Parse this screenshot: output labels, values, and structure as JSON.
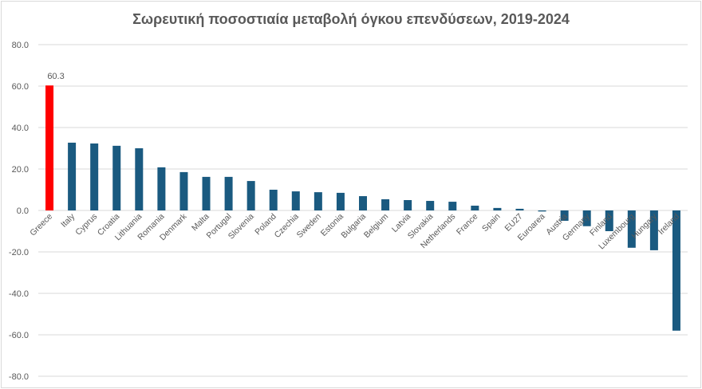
{
  "chart_data": {
    "type": "bar",
    "title": "Σωρευτική ποσοστιαία μεταβολή όγκου επενδύσεων, 2019-2024",
    "xlabel": "",
    "ylabel": "",
    "ylim": [
      -80,
      80
    ],
    "yticks": [
      "80.0",
      "60.0",
      "40.0",
      "20.0",
      "0.0",
      "-20.0",
      "-40.0",
      "-60.0",
      "-80.0"
    ],
    "grid": true,
    "categories": [
      "Greece",
      "Italy",
      "Cyprus",
      "Croatia",
      "Lithuania",
      "Romania",
      "Denmark",
      "Malta",
      "Portugal",
      "Slovenia",
      "Poland",
      "Czechia",
      "Sweden",
      "Estonia",
      "Bulgaria",
      "Belgium",
      "Latvia",
      "Slovakia",
      "Netherlands",
      "France",
      "Spain",
      "EU27",
      "Euroarea",
      "Austria",
      "Germany",
      "Finland",
      "Luxembourg",
      "Hungary",
      "Ireland"
    ],
    "values": [
      60.3,
      32.7,
      32.3,
      31.2,
      30.0,
      20.8,
      18.5,
      16.2,
      16.2,
      14.2,
      10.0,
      9.2,
      8.8,
      8.5,
      6.9,
      5.4,
      5.0,
      4.6,
      4.2,
      2.3,
      1.2,
      0.8,
      -0.5,
      -5.0,
      -7.6,
      -10.0,
      -18.0,
      -19.2,
      -58.0
    ],
    "data_labels": [
      {
        "category": "Greece",
        "text": "60.3"
      }
    ],
    "colors": {
      "highlight": "#ff0000",
      "default": "#1a5a80",
      "grid": "#d9d9d9",
      "text": "#595959"
    },
    "highlight_category": "Greece"
  }
}
